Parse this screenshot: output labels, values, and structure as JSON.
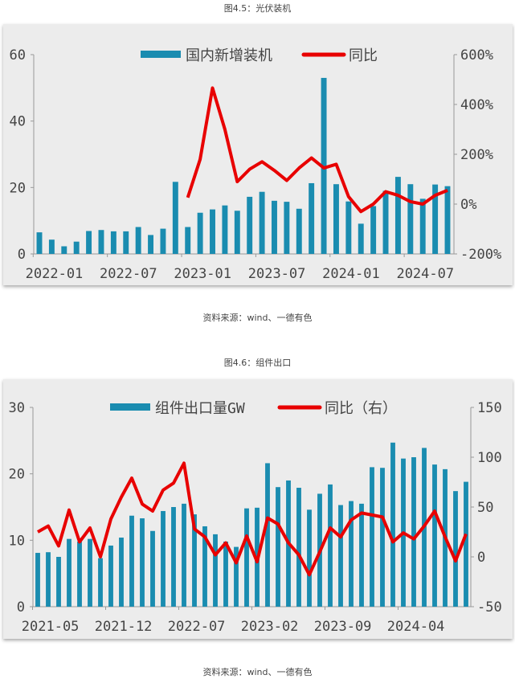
{
  "figures": [
    {
      "caption": "图4.5：光伏装机",
      "source": "资料来源：wind、一德有色"
    },
    {
      "caption": "图4.6：组件出口",
      "source": "资料来源：wind、一德有色"
    }
  ],
  "colors": {
    "bar": "#1a8cb0",
    "line": "#e80000",
    "panel": "#ececec"
  },
  "chart_data": [
    {
      "type": "bar+line",
      "legend_placement": "top",
      "x_start": "2022-01",
      "x_tick_labels": [
        "2022-01",
        "2022-07",
        "2023-01",
        "2023-07",
        "2024-01",
        "2024-07"
      ],
      "y_left": {
        "ylim": [
          0,
          60
        ],
        "ticks": [
          "0",
          "20",
          "40",
          "60"
        ]
      },
      "y_right": {
        "ylim": [
          -200,
          600
        ],
        "ticks": [
          "-200%",
          "0%",
          "200%",
          "400%",
          "600%"
        ]
      },
      "series": [
        {
          "name": "国内新增装机",
          "type": "bar",
          "axis": "left",
          "values": [
            6.5,
            4.3,
            2.3,
            3.7,
            6.9,
            7.2,
            6.8,
            6.8,
            8.1,
            5.7,
            7.6,
            21.7,
            8.1,
            12.4,
            13.4,
            14.6,
            13.0,
            17.2,
            18.7,
            16.0,
            15.7,
            13.6,
            21.3,
            53.0,
            21.0,
            15.8,
            9.1,
            14.4,
            19.0,
            23.2,
            21.0,
            16.6,
            20.9,
            20.4
          ]
        },
        {
          "name": "同比",
          "type": "line",
          "axis": "right",
          "start_index": 12,
          "values": [
            26,
            180,
            466,
            300,
            90,
            140,
            170,
            135,
            95,
            145,
            185,
            145,
            160,
            30,
            -30,
            0,
            50,
            35,
            10,
            0,
            35,
            55
          ]
        }
      ]
    },
    {
      "type": "bar+line",
      "legend_placement": "top",
      "x_start": "2021-05",
      "x_tick_labels": [
        "2021-05",
        "2021-12",
        "2022-07",
        "2023-02",
        "2023-09",
        "2024-04"
      ],
      "y_left": {
        "ylim": [
          0,
          30
        ],
        "ticks": [
          "0",
          "10",
          "20",
          "30"
        ]
      },
      "y_right": {
        "ylim": [
          -50,
          150
        ],
        "ticks": [
          "-50",
          "0",
          "50",
          "100",
          "150"
        ]
      },
      "series": [
        {
          "name": "组件出口量GW",
          "type": "bar",
          "axis": "left",
          "values": [
            8.1,
            8.2,
            7.5,
            10.2,
            9.8,
            10.2,
            7.3,
            9.2,
            10.4,
            13.7,
            13.3,
            11.4,
            14.4,
            15.0,
            15.5,
            13.9,
            12.1,
            10.9,
            9.8,
            9.0,
            14.8,
            14.9,
            21.6,
            18.0,
            19.0,
            17.9,
            14.6,
            17.0,
            18.4,
            15.3,
            15.9,
            15.5,
            21.0,
            20.9,
            24.7,
            22.3,
            22.5,
            23.9,
            21.4,
            20.7,
            17.4,
            18.8
          ]
        },
        {
          "name": "同比（右）",
          "type": "line",
          "axis": "right",
          "start_index": 0,
          "values": [
            25,
            31,
            11,
            47,
            15,
            29,
            0,
            38,
            60,
            79,
            53,
            46,
            67,
            74,
            94,
            28,
            20,
            2,
            14,
            -6,
            21,
            -5,
            39,
            33,
            14,
            2,
            -18,
            5,
            29,
            20,
            37,
            44,
            42,
            40,
            15,
            24,
            18,
            31,
            46,
            20,
            -4,
            23
          ]
        }
      ]
    }
  ]
}
